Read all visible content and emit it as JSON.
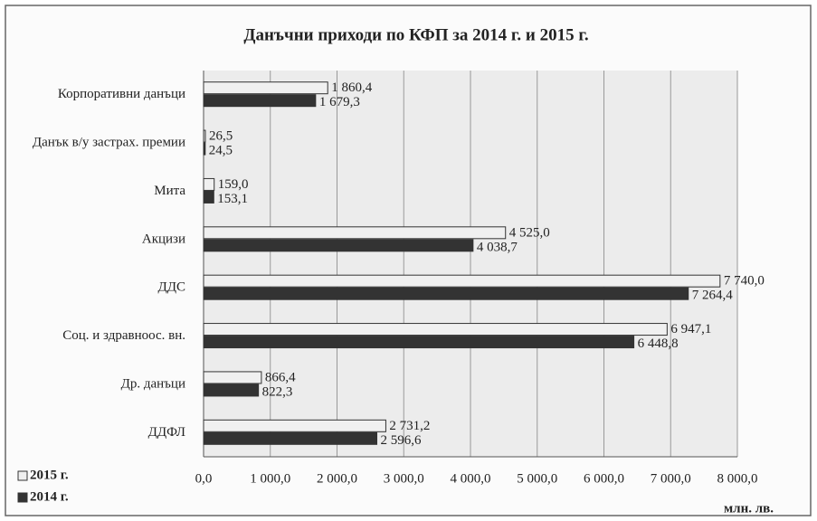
{
  "chart_data": {
    "type": "bar",
    "orientation": "horizontal",
    "title": "Данъчни приходи по КФП за 2014 г. и 2015 г.",
    "x_label": "млн. лв.",
    "categories": [
      "Корпоративни данъци",
      "Данък в/у застрах. премии",
      "Мита",
      "Акцизи",
      "ДДС",
      "Соц. и здравноос. вн.",
      "Др. данъци",
      "ДДФЛ"
    ],
    "series": [
      {
        "name": "2015 г.",
        "color": "#f0f0f0",
        "values": [
          1860.4,
          26.5,
          159.0,
          4525.0,
          7740.0,
          6947.1,
          866.4,
          2731.2
        ],
        "value_labels": [
          "1 860,4",
          "26,5",
          "159,0",
          "4 525,0",
          "7 740,0",
          "6 947,1",
          "866,4",
          "2 731,2"
        ]
      },
      {
        "name": "2014 г.",
        "color": "#333333",
        "values": [
          1679.3,
          24.5,
          153.1,
          4038.7,
          7264.4,
          6448.8,
          822.3,
          2596.6
        ],
        "value_labels": [
          "1 679,3",
          "24,5",
          "153,1",
          "4 038,7",
          "7 264,4",
          "6 448,8",
          "822,3",
          "2 596,6"
        ]
      }
    ],
    "xlim": [
      0,
      8000
    ],
    "xticks": [
      {
        "value": 0,
        "label": "0,0"
      },
      {
        "value": 1000,
        "label": "1 000,0"
      },
      {
        "value": 2000,
        "label": "2 000,0"
      },
      {
        "value": 3000,
        "label": "3 000,0"
      },
      {
        "value": 4000,
        "label": "4 000,0"
      },
      {
        "value": 5000,
        "label": "5 000,0"
      },
      {
        "value": 6000,
        "label": "6 000,0"
      },
      {
        "value": 7000,
        "label": "7 000,0"
      },
      {
        "value": 8000,
        "label": "8 000,0"
      }
    ],
    "grid": true
  }
}
